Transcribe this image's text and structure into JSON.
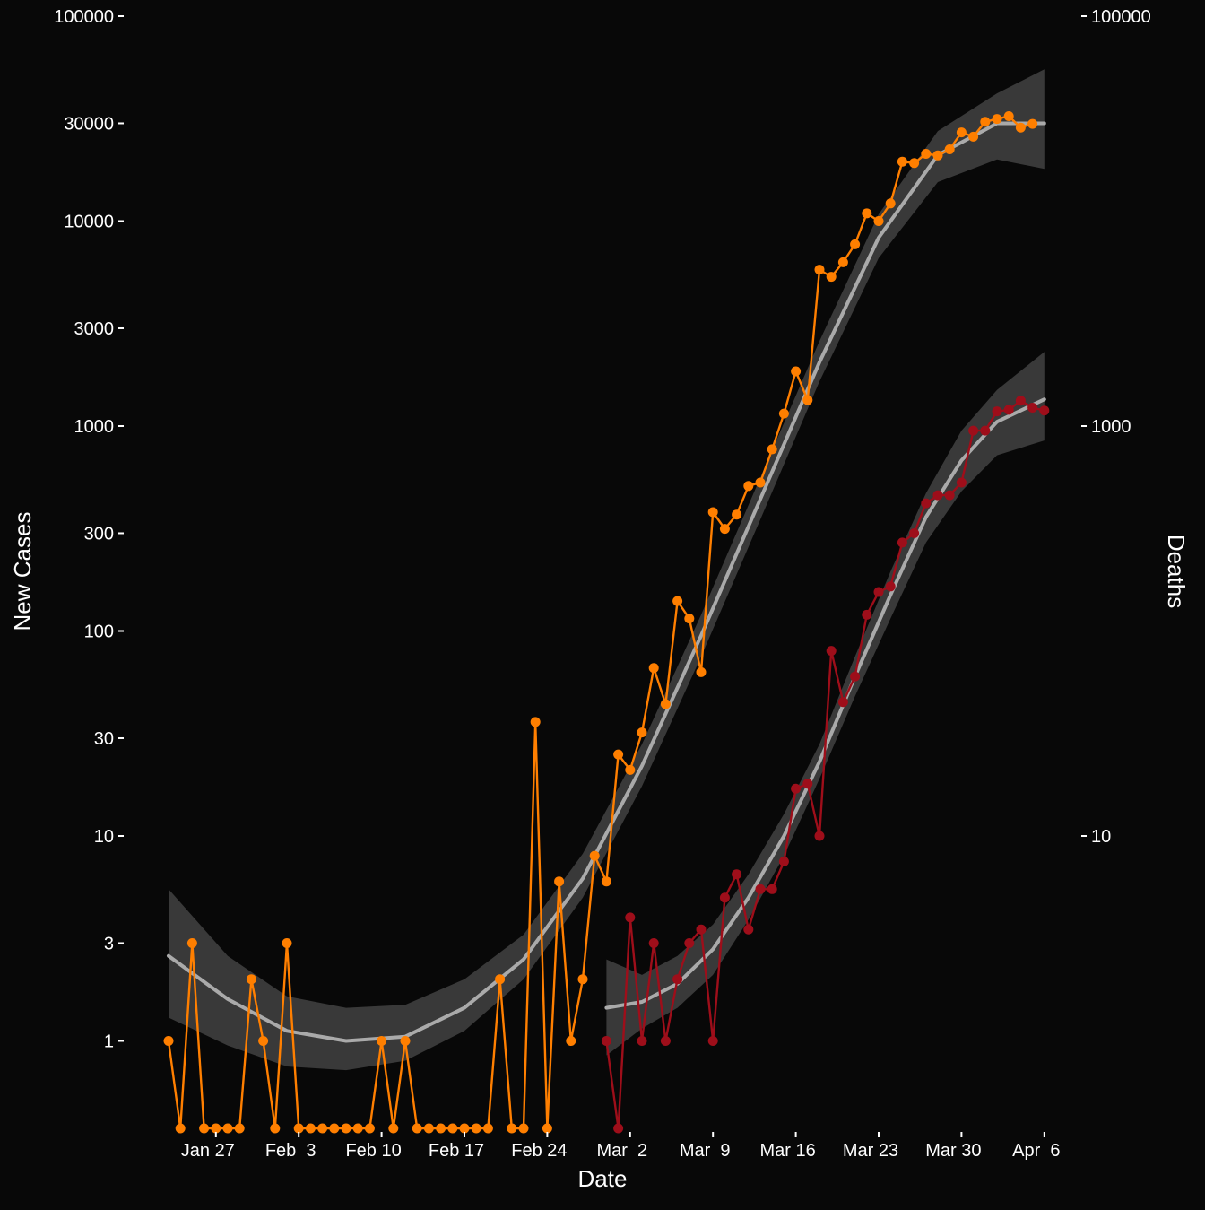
{
  "colors": {
    "background": "#080808",
    "cases": "#ff7f00",
    "deaths": "#9e0e1a",
    "smooth_line": "#aaaaaa",
    "smooth_band": "#3c3c3c",
    "text": "#ffffff"
  },
  "chart_data": {
    "type": "line",
    "title": "",
    "xlabel": "Date",
    "ylabel_left": "New Cases",
    "ylabel_right": "Deaths",
    "y_scale": "log",
    "ylim_left": [
      0.4,
      100000
    ],
    "ylim_right": [
      0.4,
      100000
    ],
    "xlim": [
      "2020-01-23",
      "2020-04-06"
    ],
    "left_ticks": [
      {
        "value": 100000,
        "label": "100000"
      },
      {
        "value": 30000,
        "label": "30000"
      },
      {
        "value": 10000,
        "label": "10000"
      },
      {
        "value": 3000,
        "label": "3000"
      },
      {
        "value": 1000,
        "label": "1000"
      },
      {
        "value": 300,
        "label": "300"
      },
      {
        "value": 100,
        "label": "100"
      },
      {
        "value": 30,
        "label": "30"
      },
      {
        "value": 10,
        "label": "10"
      },
      {
        "value": 3,
        "label": "3"
      },
      {
        "value": 1,
        "label": "1"
      }
    ],
    "right_ticks": [
      {
        "value": 100000,
        "label": "100000"
      },
      {
        "value": 1000,
        "label": "1000"
      },
      {
        "value": 10,
        "label": "10"
      }
    ],
    "x_ticks": [
      {
        "date": "2020-01-27",
        "label": "Jan 27"
      },
      {
        "date": "2020-02-03",
        "label": "Feb  3"
      },
      {
        "date": "2020-02-10",
        "label": "Feb 10"
      },
      {
        "date": "2020-02-17",
        "label": "Feb 17"
      },
      {
        "date": "2020-02-24",
        "label": "Feb 24"
      },
      {
        "date": "2020-03-02",
        "label": "Mar  2"
      },
      {
        "date": "2020-03-09",
        "label": "Mar  9"
      },
      {
        "date": "2020-03-16",
        "label": "Mar 16"
      },
      {
        "date": "2020-03-23",
        "label": "Mar 23"
      },
      {
        "date": "2020-03-30",
        "label": "Mar 30"
      },
      {
        "date": "2020-04-06",
        "label": "Apr  6"
      }
    ],
    "series": [
      {
        "key": "cases",
        "start_date": "2020-01-23",
        "values": [
          1,
          0,
          3,
          0,
          0,
          0,
          0,
          2,
          1,
          0,
          3,
          0,
          0,
          0,
          0,
          0,
          0,
          0,
          1,
          0,
          1,
          0,
          0,
          0,
          0,
          0,
          0,
          0,
          2,
          0,
          0,
          36,
          0,
          6,
          1,
          2,
          8,
          6,
          25,
          21,
          32,
          66,
          44,
          140,
          115,
          63,
          380,
          315,
          370,
          510,
          530,
          770,
          1150,
          1850,
          1340,
          5800,
          5350,
          6300,
          7700,
          10900,
          10000,
          12200,
          19500,
          19200,
          21300,
          20900,
          22400,
          27100,
          25800,
          30500,
          31500,
          32500,
          28600,
          29800
        ]
      },
      {
        "key": "deaths",
        "start_date": "2020-02-29",
        "values": [
          1,
          0,
          4,
          1,
          3,
          1,
          2,
          3,
          3.5,
          1,
          5,
          6.5,
          3.5,
          5.5,
          5.5,
          7.5,
          17,
          18,
          10,
          80,
          45,
          60,
          120,
          155,
          165,
          270,
          300,
          420,
          460,
          460,
          530,
          950,
          950,
          1180,
          1200,
          1330,
          1230,
          1190
        ]
      }
    ],
    "smooth": [
      {
        "key": "cases",
        "dates": [
          "2020-01-23",
          "2020-01-28",
          "2020-02-02",
          "2020-02-07",
          "2020-02-12",
          "2020-02-17",
          "2020-02-22",
          "2020-02-27",
          "2020-03-03",
          "2020-03-08",
          "2020-03-13",
          "2020-03-18",
          "2020-03-23",
          "2020-03-28",
          "2020-04-02",
          "2020-04-06"
        ],
        "fit": [
          2.6,
          1.6,
          1.12,
          1.0,
          1.05,
          1.45,
          2.5,
          6.2,
          22,
          95,
          440,
          2050,
          8300,
          21000,
          30000,
          30000
        ],
        "lower": [
          1.3,
          0.95,
          0.75,
          0.72,
          0.8,
          1.12,
          2.0,
          5.0,
          17.5,
          75,
          350,
          1650,
          6600,
          15500,
          20000,
          18000
        ],
        "upper": [
          5.5,
          2.6,
          1.65,
          1.45,
          1.5,
          2.0,
          3.3,
          8.2,
          28,
          120,
          560,
          2600,
          10800,
          27500,
          42000,
          55000
        ]
      },
      {
        "key": "deaths",
        "dates": [
          "2020-02-29",
          "2020-03-03",
          "2020-03-06",
          "2020-03-09",
          "2020-03-12",
          "2020-03-15",
          "2020-03-18",
          "2020-03-21",
          "2020-03-24",
          "2020-03-27",
          "2020-03-30",
          "2020-04-02",
          "2020-04-06"
        ],
        "fit": [
          1.45,
          1.55,
          1.9,
          2.8,
          5.0,
          10,
          23,
          60,
          150,
          360,
          680,
          1050,
          1350
        ],
        "lower": [
          0.85,
          1.15,
          1.45,
          2.1,
          3.9,
          8.0,
          19,
          48,
          115,
          270,
          480,
          720,
          850
        ],
        "upper": [
          2.5,
          2.1,
          2.6,
          3.7,
          6.5,
          12.8,
          28,
          75,
          195,
          470,
          950,
          1500,
          2300
        ]
      }
    ]
  }
}
